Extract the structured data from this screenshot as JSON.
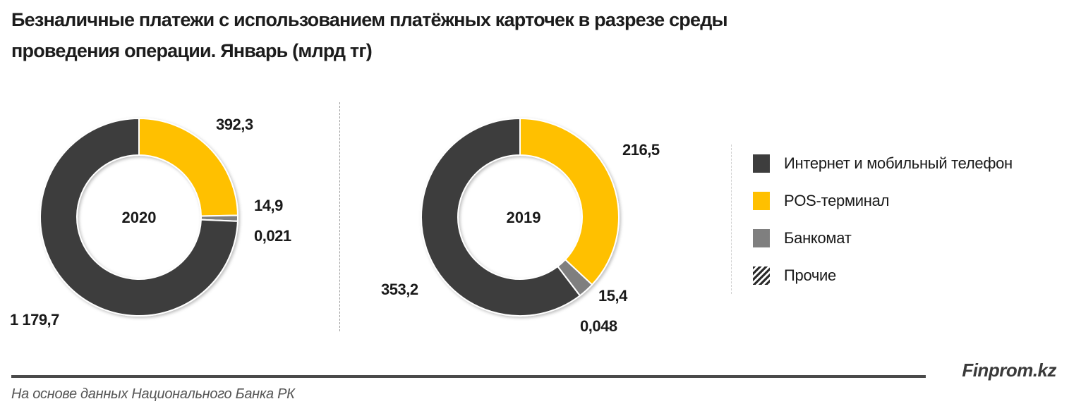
{
  "title": {
    "line1": "Безналичные платежи с использованием платёжных карточек в разрезе среды",
    "line2": "проведения операции. Январь (млрд тг)"
  },
  "charts": [
    {
      "year": "2020",
      "labels": {
        "internet": "1 179,7",
        "pos": "392,3",
        "atm": "14,9",
        "other": "0,021"
      }
    },
    {
      "year": "2019",
      "labels": {
        "internet": "353,2",
        "pos": "216,5",
        "atm": "15,4",
        "other": "0,048"
      }
    }
  ],
  "legend": [
    {
      "label": "Интернет и мобильный телефон",
      "color": "#3d3d3d"
    },
    {
      "label": "POS-терминал",
      "color": "#ffc000"
    },
    {
      "label": "Банкомат",
      "color": "#7f7f7f"
    },
    {
      "label": "Прочие",
      "color": "hatched"
    }
  ],
  "footer": {
    "brand": "Finprom.kz",
    "source": "На основе данных Национального  Банка РК"
  },
  "chart_data": [
    {
      "type": "pie",
      "subtype": "donut",
      "title": "Безналичные платежи с использованием платёжных карточек в разрезе среды проведения операции. Январь (млрд тг)",
      "center_label": "2020",
      "categories": [
        "Интернет и мобильный телефон",
        "POS-терминал",
        "Банкомат",
        "Прочие"
      ],
      "values": [
        1179.7,
        392.3,
        14.9,
        0.021
      ],
      "colors": [
        "#3d3d3d",
        "#ffc000",
        "#7f7f7f",
        "hatched"
      ],
      "unit": "млрд тг",
      "legend_position": "right"
    },
    {
      "type": "pie",
      "subtype": "donut",
      "title": "Безналичные платежи с использованием платёжных карточек в разрезе среды проведения операции. Январь (млрд тг)",
      "center_label": "2019",
      "categories": [
        "Интернет и мобильный телефон",
        "POS-терминал",
        "Банкомат",
        "Прочие"
      ],
      "values": [
        353.2,
        216.5,
        15.4,
        0.048
      ],
      "colors": [
        "#3d3d3d",
        "#ffc000",
        "#7f7f7f",
        "hatched"
      ],
      "unit": "млрд тг",
      "legend_position": "right"
    }
  ]
}
